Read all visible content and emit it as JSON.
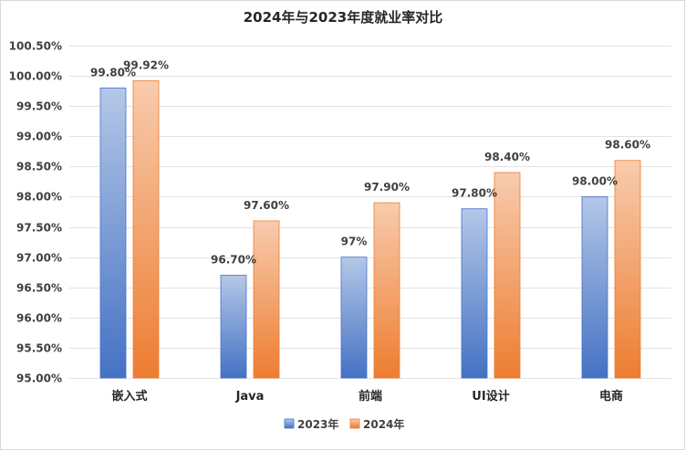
{
  "chart_data": {
    "type": "bar",
    "title": "2024年与2023年度就业率对比",
    "xlabel": "",
    "ylabel": "",
    "categories": [
      "嵌入式",
      "Java",
      "前端",
      "UI设计",
      "电商"
    ],
    "series": [
      {
        "name": "2023年",
        "values": [
          99.8,
          96.7,
          97.0,
          97.8,
          98.0
        ],
        "labels": [
          "99.80%",
          "96.70%",
          "97%",
          "97.80%",
          "98.00%"
        ],
        "color_top": "#b4c7e7",
        "color_bottom": "#4472c4"
      },
      {
        "name": "2024年",
        "values": [
          99.92,
          97.6,
          97.9,
          98.4,
          98.6
        ],
        "labels": [
          "99.92%",
          "97.60%",
          "97.90%",
          "98.40%",
          "98.60%"
        ],
        "color_top": "#f8cbad",
        "color_bottom": "#ed7d31"
      }
    ],
    "ylim": [
      95.0,
      100.5
    ],
    "yticks": [
      95.0,
      95.5,
      96.0,
      96.5,
      97.0,
      97.5,
      98.0,
      98.5,
      99.0,
      99.5,
      100.0,
      100.5
    ],
    "ytick_labels": [
      "95.00%",
      "95.50%",
      "96.00%",
      "96.50%",
      "97.00%",
      "97.50%",
      "98.00%",
      "98.50%",
      "99.00%",
      "99.50%",
      "100.00%",
      "100.50%"
    ],
    "grid": true,
    "legend_position": "bottom"
  }
}
